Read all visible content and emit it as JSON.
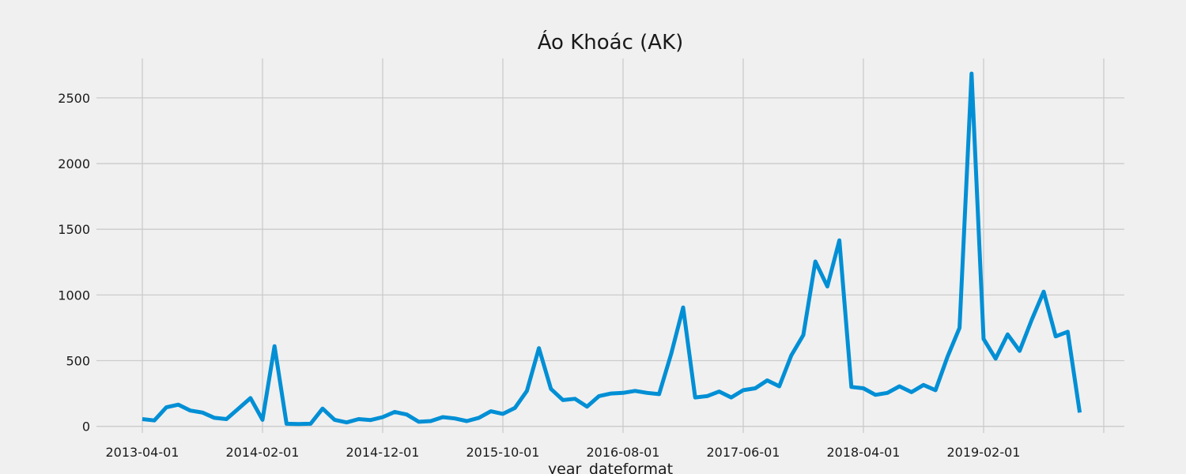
{
  "chart_data": {
    "type": "line",
    "title": "Áo Khoác (AK)",
    "xlabel": "year_dateformat",
    "ylabel": "",
    "grid": true,
    "x_ticks": [
      "2013-04-01",
      "2014-02-01",
      "2014-12-01",
      "2015-10-01",
      "2016-08-01",
      "2017-06-01",
      "2018-04-01",
      "2019-02-01",
      ""
    ],
    "y_ticks": [
      0,
      500,
      1000,
      1500,
      2000,
      2500
    ],
    "ylim": [
      -50,
      2800
    ],
    "x_start": "2013-04-01",
    "series": [
      {
        "name": "",
        "color": "#008fd5",
        "x": [
          "2013-04-01",
          "2013-05-01",
          "2013-06-01",
          "2013-07-01",
          "2013-08-01",
          "2013-09-01",
          "2013-10-01",
          "2013-11-01",
          "2013-12-01",
          "2014-01-01",
          "2014-02-01",
          "2014-03-01",
          "2014-04-01",
          "2014-05-01",
          "2014-06-01",
          "2014-07-01",
          "2014-08-01",
          "2014-09-01",
          "2014-10-01",
          "2014-11-01",
          "2014-12-01",
          "2015-01-01",
          "2015-02-01",
          "2015-03-01",
          "2015-04-01",
          "2015-05-01",
          "2015-06-01",
          "2015-07-01",
          "2015-08-01",
          "2015-09-01",
          "2015-10-01",
          "2015-11-01",
          "2015-12-01",
          "2016-01-01",
          "2016-02-01",
          "2016-03-01",
          "2016-04-01",
          "2016-05-01",
          "2016-06-01",
          "2016-07-01",
          "2016-08-01",
          "2016-09-01",
          "2016-10-01",
          "2016-11-01",
          "2016-12-01",
          "2017-01-01",
          "2017-02-01",
          "2017-03-01",
          "2017-04-01",
          "2017-05-01",
          "2017-06-01",
          "2017-07-01",
          "2017-08-01",
          "2017-09-01",
          "2017-10-01",
          "2017-11-01",
          "2017-12-01",
          "2018-01-01",
          "2018-02-01",
          "2018-03-01",
          "2018-04-01",
          "2018-05-01",
          "2018-06-01",
          "2018-07-01",
          "2018-08-01",
          "2018-09-01",
          "2018-10-01",
          "2018-11-01",
          "2018-12-01",
          "2019-01-01",
          "2019-02-01",
          "2019-03-01",
          "2019-04-01",
          "2019-05-01",
          "2019-06-01",
          "2019-07-01",
          "2019-08-01",
          "2019-09-01",
          "2019-10-01"
        ],
        "values": [
          55,
          45,
          145,
          165,
          120,
          105,
          65,
          55,
          135,
          215,
          50,
          610,
          20,
          18,
          20,
          135,
          50,
          30,
          55,
          48,
          70,
          110,
          90,
          35,
          40,
          70,
          60,
          40,
          65,
          115,
          95,
          140,
          270,
          595,
          285,
          200,
          210,
          150,
          230,
          250,
          255,
          270,
          255,
          245,
          550,
          905,
          220,
          230,
          265,
          220,
          275,
          290,
          350,
          305,
          540,
          695,
          1255,
          1065,
          1415,
          300,
          290,
          240,
          255,
          305,
          260,
          315,
          275,
          530,
          750,
          2685,
          665,
          515,
          700,
          575,
          810,
          1025,
          685,
          720,
          105
        ]
      }
    ]
  }
}
